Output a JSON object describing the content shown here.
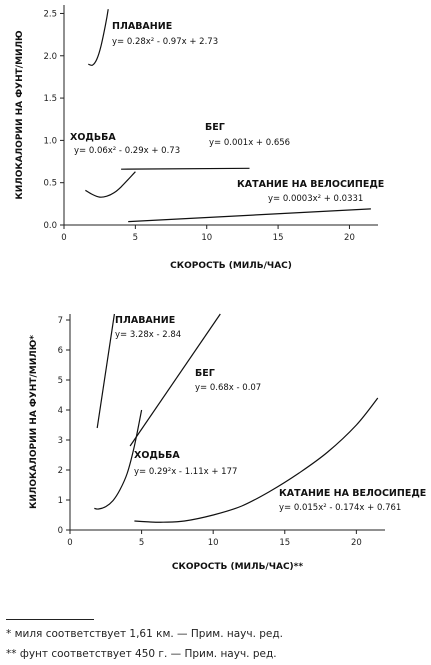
{
  "chart_data": [
    {
      "type": "line",
      "ylabel": "КИЛОКАЛОРИИ НА ФУНТ/МИЛЮ",
      "xlabel": "СКОРОСТЬ (МИЛЬ/ЧАС)",
      "xlim": [
        0,
        22
      ],
      "ylim": [
        0,
        2.6
      ],
      "x_ticks": [
        "0",
        "5",
        "10",
        "15",
        "20"
      ],
      "y_ticks": [
        "0.0",
        "0.5",
        "1.0",
        "1.5",
        "2.0",
        "2.5"
      ],
      "grid": false,
      "series": [
        {
          "name": "ПЛАВАНИЕ",
          "equation": "y= 0.28x² - 0.97x + 2.73",
          "x": [
            1.7,
            2.0,
            2.3,
            2.6,
            2.9,
            3.1
          ],
          "y": [
            1.9,
            1.89,
            1.96,
            2.12,
            2.36,
            2.55
          ]
        },
        {
          "name": "БЕГ",
          "equation": "y= 0.001x + 0.656",
          "x": [
            4,
            13
          ],
          "y": [
            0.66,
            0.67
          ]
        },
        {
          "name": "ХОДЬБА",
          "equation": "y= 0.06x² - 0.29x + 0.73",
          "x": [
            1.5,
            2.0,
            2.5,
            3.0,
            3.5,
            4.0,
            5.0
          ],
          "y": [
            0.41,
            0.36,
            0.33,
            0.34,
            0.38,
            0.45,
            0.63
          ]
        },
        {
          "name": "КАТАНИЕ НА ВЕЛОСИПЕДЕ",
          "equation": "y= 0.0003x² + 0.0331",
          "x": [
            4.5,
            21.5
          ],
          "y": [
            0.04,
            0.19
          ]
        }
      ]
    },
    {
      "type": "line",
      "ylabel": "КИЛОКАЛОРИИ НА ФУНТ/МИЛЮ*",
      "xlabel": "СКОРОСТЬ (МИЛЬ/ЧАС)**",
      "xlim": [
        0,
        22
      ],
      "ylim": [
        0,
        7.2
      ],
      "x_ticks": [
        "0",
        "5",
        "10",
        "15",
        "20"
      ],
      "y_ticks": [
        "0",
        "1",
        "2",
        "3",
        "4",
        "5",
        "6",
        "7"
      ],
      "grid": false,
      "series": [
        {
          "name": "ПЛАВАНИЕ",
          "equation": "y= 3.28x - 2.84",
          "x": [
            1.9,
            3.1
          ],
          "y": [
            3.4,
            7.2
          ]
        },
        {
          "name": "БЕГ",
          "equation": "y= 0.68x - 0.07",
          "x": [
            4.2,
            10.5
          ],
          "y": [
            2.8,
            7.2
          ]
        },
        {
          "name": "ХОДЬБА",
          "equation": "y= 0.29²x - 1.11x + 177",
          "x": [
            1.7,
            2.0,
            2.5,
            3.0,
            3.5,
            4.0,
            4.5,
            5.0
          ],
          "y": [
            0.72,
            0.7,
            0.78,
            0.98,
            1.35,
            1.9,
            2.8,
            4.0
          ]
        },
        {
          "name": "КАТАНИЕ НА ВЕЛОСИПЕДЕ",
          "equation": "y= 0.015x² - 0.174x + 0.761",
          "x": [
            4.5,
            5.5,
            6.5,
            8,
            10,
            12,
            14,
            16,
            18,
            20,
            21.5
          ],
          "y": [
            0.3,
            0.27,
            0.26,
            0.3,
            0.5,
            0.8,
            1.3,
            1.9,
            2.6,
            3.5,
            4.4
          ]
        }
      ]
    }
  ],
  "footnotes": [
    "* миля соответствует 1,61 км.  — Прим. науч. ред.",
    "** фунт соответствует 450 г.  — Прим. науч. ред."
  ]
}
